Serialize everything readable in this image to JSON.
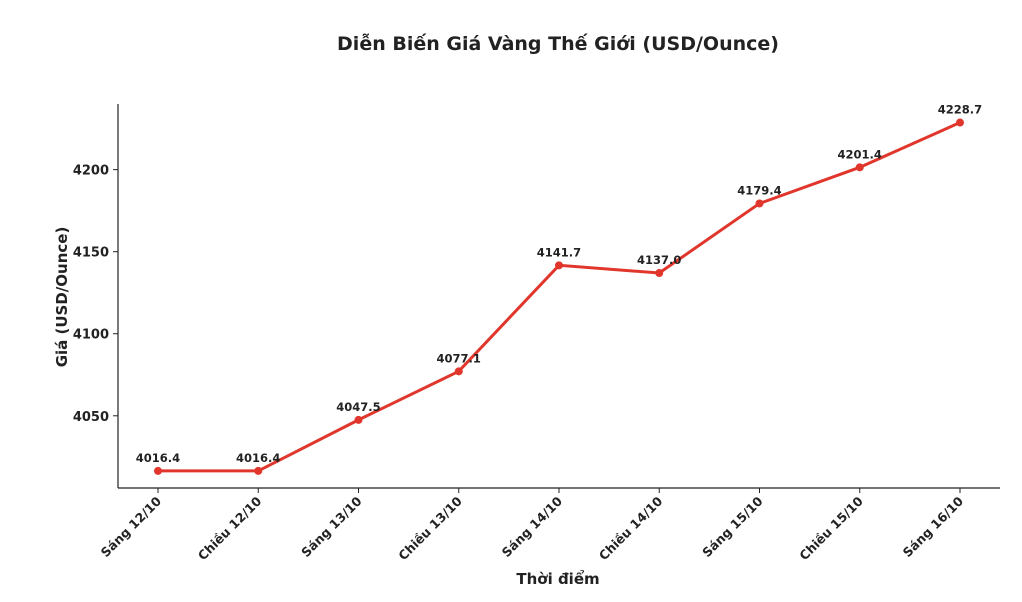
{
  "chart_data": {
    "type": "line",
    "title": "Diễn Biến Giá Vàng Thế Giới (USD/Ounce)",
    "x_label": "Thời điểm",
    "y_label": "Giá (USD/Ounce)",
    "categories": [
      "Sáng 12/10",
      "Chiều 12/10",
      "Sáng 13/10",
      "Chiều 13/10",
      "Sáng 14/10",
      "Chiều 14/10",
      "Sáng 15/10",
      "Chiều 15/10",
      "Sáng 16/10"
    ],
    "values": [
      4016.4,
      4016.4,
      4047.5,
      4077.1,
      4141.7,
      4137.0,
      4179.4,
      4201.4,
      4228.7
    ],
    "value_labels": [
      "4016.4",
      "4016.4",
      "4047.5",
      "4077.1",
      "4141.7",
      "4137.0",
      "4179.4",
      "4201.4",
      "4228.7"
    ],
    "color": "#e0362c",
    "ylim": [
      4006,
      4240
    ],
    "yticks": [
      4050,
      4100,
      4150,
      4200
    ],
    "grid": false
  }
}
